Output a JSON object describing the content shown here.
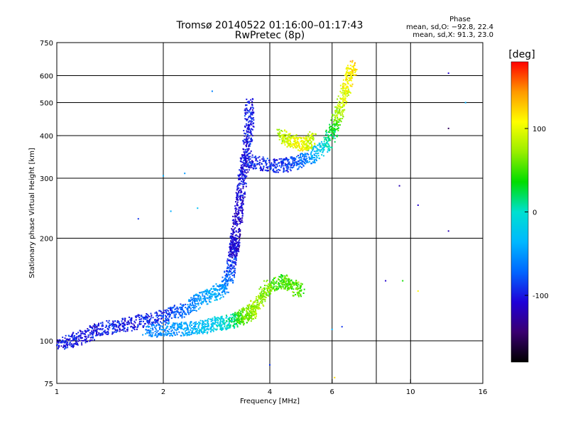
{
  "chart_data": {
    "type": "scatter",
    "title": "Tromsø 20140522 01:16:00–01:17:43",
    "subtitle": "RwPretec (8p)",
    "xlabel": "Frequency [MHz]",
    "ylabel": "Stationary phase Virtual Height [km]",
    "x_scale": "log",
    "y_scale": "log",
    "xlim": [
      1,
      16
    ],
    "ylim": [
      75,
      750
    ],
    "x_ticks": [
      1,
      2,
      4,
      6,
      10,
      16
    ],
    "y_ticks": [
      75,
      100,
      200,
      300,
      400,
      500,
      600,
      750
    ],
    "x_gridlines": [
      2,
      4,
      6,
      8,
      10
    ],
    "y_gridlines": [
      100,
      200,
      300,
      400,
      500,
      600
    ],
    "grid": true,
    "phase_stats": {
      "heading": "Phase",
      "line_o": "mean, sd,O: −92.8, 22.4",
      "line_x": "mean, sd,X:  91.3, 23.0"
    },
    "colorbar": {
      "label": "[deg]",
      "range": [
        -180,
        180
      ],
      "ticks": [
        100,
        0,
        -100
      ],
      "colors": [
        "#000000",
        "#3a0070",
        "#1f00d8",
        "#0066ff",
        "#00b8ff",
        "#00e0d0",
        "#00dd00",
        "#99ee00",
        "#ffff00",
        "#ff9900",
        "#ff0000"
      ]
    },
    "series": [
      {
        "trace": "low E/F1 layer rise",
        "x": [
          1.0,
          1.1,
          1.2,
          1.3,
          1.45,
          1.6,
          1.8,
          2.0,
          2.2,
          2.4,
          2.6,
          2.8,
          3.0,
          3.1,
          3.15,
          3.2
        ],
        "y": [
          97,
          100,
          103,
          108,
          110,
          112,
          115,
          118,
          122,
          127,
          133,
          138,
          145,
          160,
          180,
          200
        ],
        "phase": [
          -100,
          -100,
          -105,
          -100,
          -95,
          -100,
          -95,
          -90,
          -80,
          -60,
          -50,
          -40,
          -60,
          -80,
          -100,
          -110
        ]
      },
      {
        "trace": "lower branch (greenish/cyan)",
        "x": [
          1.8,
          2.0,
          2.2,
          2.4,
          2.6,
          2.8,
          3.0,
          3.2,
          3.4,
          3.6
        ],
        "y": [
          106,
          108,
          108,
          109,
          110,
          112,
          113,
          115,
          118,
          122
        ],
        "phase": [
          -60,
          -55,
          -50,
          -40,
          -30,
          -20,
          -10,
          20,
          60,
          80
        ]
      },
      {
        "trace": "F2 cusp vertical",
        "x": [
          3.15,
          3.2,
          3.25,
          3.3,
          3.35,
          3.4,
          3.45,
          3.5,
          3.5
        ],
        "y": [
          180,
          200,
          230,
          260,
          300,
          330,
          380,
          430,
          500
        ],
        "phase": [
          -110,
          -115,
          -110,
          -105,
          -100,
          -110,
          -100,
          -95,
          -100
        ]
      },
      {
        "trace": "F2 layer",
        "x": [
          3.4,
          3.8,
          4.2,
          4.6,
          5.0,
          5.4,
          5.8,
          6.1,
          6.3,
          6.5,
          6.7,
          6.9
        ],
        "y": [
          340,
          330,
          325,
          330,
          340,
          355,
          380,
          420,
          470,
          530,
          590,
          640
        ],
        "phase": [
          -100,
          -95,
          -90,
          -80,
          -70,
          -40,
          0,
          40,
          80,
          100,
          115,
          120
        ]
      },
      {
        "trace": "O-mode patch",
        "x": [
          4.3,
          4.5,
          4.8,
          5.1,
          5.3
        ],
        "y": [
          400,
          390,
          380,
          375,
          395
        ],
        "phase": [
          80,
          90,
          110,
          100,
          85
        ]
      },
      {
        "trace": "mid patch (green/yellow)",
        "x": [
          3.4,
          3.6,
          3.8,
          4.0,
          4.3,
          4.6,
          4.9
        ],
        "y": [
          118,
          125,
          135,
          145,
          150,
          145,
          140
        ],
        "phase": [
          60,
          80,
          70,
          60,
          50,
          60,
          50
        ]
      }
    ],
    "scatter_noise": [
      {
        "x": 2.0,
        "y": 305,
        "phase": -40
      },
      {
        "x": 2.1,
        "y": 240,
        "phase": -40
      },
      {
        "x": 2.5,
        "y": 245,
        "phase": -30
      },
      {
        "x": 2.3,
        "y": 310,
        "phase": -50
      },
      {
        "x": 1.7,
        "y": 228,
        "phase": -90
      },
      {
        "x": 2.75,
        "y": 540,
        "phase": -60
      },
      {
        "x": 6.0,
        "y": 108,
        "phase": -40
      },
      {
        "x": 6.4,
        "y": 110,
        "phase": -90
      },
      {
        "x": 8.5,
        "y": 150,
        "phase": -110
      },
      {
        "x": 9.5,
        "y": 150,
        "phase": 40
      },
      {
        "x": 10.5,
        "y": 140,
        "phase": 110
      },
      {
        "x": 12.8,
        "y": 420,
        "phase": -150
      },
      {
        "x": 12.8,
        "y": 210,
        "phase": -120
      },
      {
        "x": 12.8,
        "y": 610,
        "phase": -110
      },
      {
        "x": 14.3,
        "y": 500,
        "phase": -40
      },
      {
        "x": 10.5,
        "y": 250,
        "phase": -110
      },
      {
        "x": 9.3,
        "y": 285,
        "phase": -120
      },
      {
        "x": 4.0,
        "y": 85,
        "phase": -90
      },
      {
        "x": 6.1,
        "y": 78,
        "phase": 120
      }
    ]
  }
}
